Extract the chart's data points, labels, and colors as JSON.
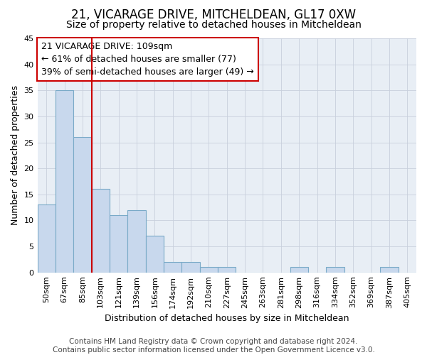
{
  "title": "21, VICARAGE DRIVE, MITCHELDEAN, GL17 0XW",
  "subtitle": "Size of property relative to detached houses in Mitcheldean",
  "xlabel": "Distribution of detached houses by size in Mitcheldean",
  "ylabel": "Number of detached properties",
  "categories": [
    "50sqm",
    "67sqm",
    "85sqm",
    "103sqm",
    "121sqm",
    "139sqm",
    "156sqm",
    "174sqm",
    "192sqm",
    "210sqm",
    "227sqm",
    "245sqm",
    "263sqm",
    "281sqm",
    "298sqm",
    "316sqm",
    "334sqm",
    "352sqm",
    "369sqm",
    "387sqm",
    "405sqm"
  ],
  "values": [
    13,
    35,
    26,
    16,
    11,
    12,
    7,
    2,
    2,
    1,
    1,
    0,
    0,
    0,
    1,
    0,
    1,
    0,
    0,
    1,
    0
  ],
  "bar_color": "#c8d8ed",
  "bar_edge_color": "#7aaac8",
  "ylim": [
    0,
    45
  ],
  "yticks": [
    0,
    5,
    10,
    15,
    20,
    25,
    30,
    35,
    40,
    45
  ],
  "annotation_box_text": "21 VICARAGE DRIVE: 109sqm\n← 61% of detached houses are smaller (77)\n39% of semi-detached houses are larger (49) →",
  "annotation_box_color": "#ffffff",
  "annotation_box_edge_color": "#cc0000",
  "red_line_color": "#cc0000",
  "grid_color": "#c8d0dc",
  "footer_text": "Contains HM Land Registry data © Crown copyright and database right 2024.\nContains public sector information licensed under the Open Government Licence v3.0.",
  "background_color": "#e8eef5",
  "title_fontsize": 12,
  "subtitle_fontsize": 10,
  "axis_label_fontsize": 9,
  "tick_fontsize": 8,
  "annotation_fontsize": 9,
  "footer_fontsize": 7.5
}
